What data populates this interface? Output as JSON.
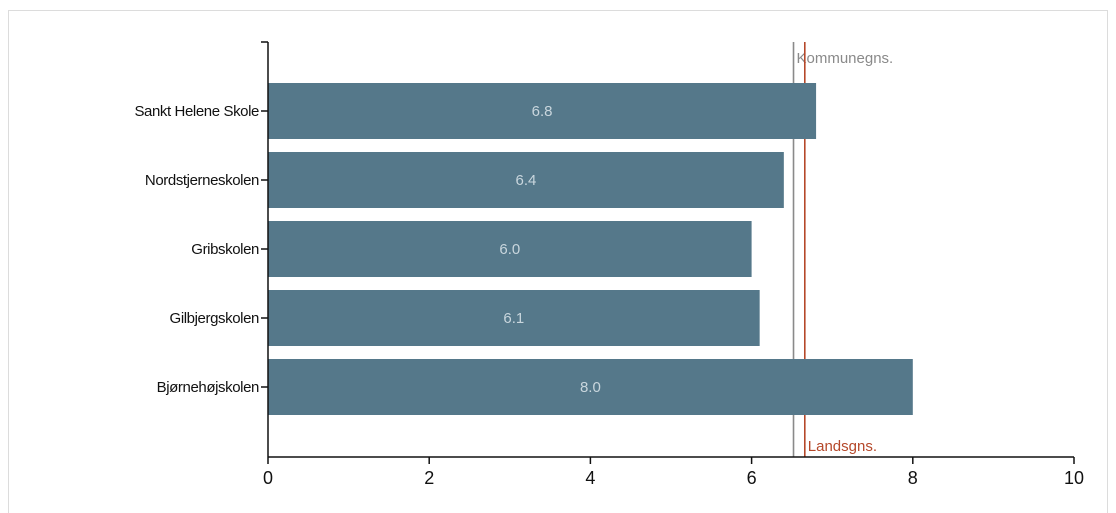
{
  "chart_data": {
    "type": "bar",
    "orientation": "horizontal",
    "categories": [
      "Sankt Helene Skole",
      "Nordstjerneskolen",
      "Gribskolen",
      "Gilbjergskolen",
      "Bjørnehøjskolen"
    ],
    "values": [
      6.8,
      6.4,
      6.0,
      6.1,
      8.0
    ],
    "value_labels": [
      "6.8",
      "6.4",
      "6.0",
      "6.1",
      "8.0"
    ],
    "xlim": [
      0,
      10
    ],
    "x_ticks": [
      "0",
      "2",
      "4",
      "6",
      "8",
      "10"
    ],
    "x_tick_values": [
      0,
      2,
      4,
      6,
      8,
      10
    ],
    "grid": false,
    "reference_lines": [
      {
        "label": "Kommunegns.",
        "value": 6.52,
        "color": "#8a8a8a",
        "label_position": "top"
      },
      {
        "label": "Landsgns.",
        "value": 6.66,
        "color": "#b5482a",
        "label_position": "bottom"
      }
    ],
    "colors": {
      "bar": "#55788a",
      "bar_label": "#c9d6dd",
      "axis": "#111111"
    }
  }
}
